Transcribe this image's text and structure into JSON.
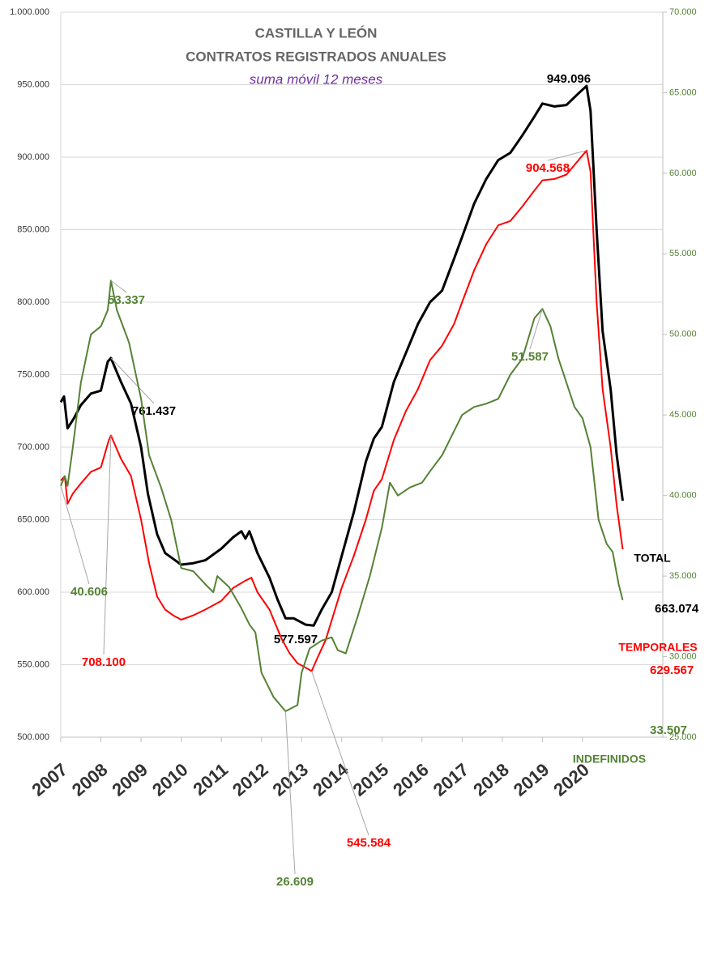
{
  "chart_data": {
    "type": "line",
    "title": "CASTILLA Y LEÓN",
    "subtitle_1": "CONTRATOS REGISTRADOS ANUALES",
    "subtitle_2": "suma móvil 12 meses",
    "xlim": [
      2007,
      2022
    ],
    "xticks": [
      2007,
      2008,
      2009,
      2010,
      2011,
      2012,
      2013,
      2014,
      2015,
      2016,
      2017,
      2018,
      2019,
      2020
    ],
    "ylim": [
      500000,
      1000000
    ],
    "yticks": [
      {
        "value": 500000,
        "label": "500.000"
      },
      {
        "value": 550000,
        "label": "550.000"
      },
      {
        "value": 600000,
        "label": "600.000"
      },
      {
        "value": 650000,
        "label": "650.000"
      },
      {
        "value": 700000,
        "label": "700.000"
      },
      {
        "value": 750000,
        "label": "750.000"
      },
      {
        "value": 800000,
        "label": "800.000"
      },
      {
        "value": 850000,
        "label": "850.000"
      },
      {
        "value": 900000,
        "label": "900.000"
      },
      {
        "value": 950000,
        "label": "950.000"
      },
      {
        "value": 1000000,
        "label": "1.000.000"
      }
    ],
    "y2lim": [
      25000,
      70000
    ],
    "y2ticks": [
      {
        "value": 25000,
        "label": "25.000"
      },
      {
        "value": 30000,
        "label": "30.000"
      },
      {
        "value": 35000,
        "label": "35.000"
      },
      {
        "value": 40000,
        "label": "40.000"
      },
      {
        "value": 45000,
        "label": "45.000"
      },
      {
        "value": 50000,
        "label": "50.000"
      },
      {
        "value": 55000,
        "label": "55.000"
      },
      {
        "value": 60000,
        "label": "60.000"
      },
      {
        "value": 65000,
        "label": "65.000"
      },
      {
        "value": 70000,
        "label": "70.000"
      }
    ],
    "grid": true,
    "series": [
      {
        "name": "TOTAL",
        "color": "#000000",
        "axis": "y",
        "x": [
          2007.0,
          2007.08,
          2007.17,
          2007.33,
          2007.5,
          2007.75,
          2008.0,
          2008.17,
          2008.25,
          2008.5,
          2008.75,
          2009.0,
          2009.17,
          2009.4,
          2009.6,
          2009.8,
          2010.0,
          2010.3,
          2010.6,
          2011.0,
          2011.3,
          2011.5,
          2011.6,
          2011.7,
          2011.9,
          2012.2,
          2012.4,
          2012.6,
          2012.8,
          2013.1,
          2013.3,
          2013.5,
          2013.75,
          2014.0,
          2014.3,
          2014.6,
          2014.8,
          2015.0,
          2015.3,
          2015.6,
          2015.9,
          2016.2,
          2016.5,
          2016.8,
          2017.0,
          2017.3,
          2017.6,
          2017.9,
          2018.2,
          2018.5,
          2018.8,
          2019.0,
          2019.3,
          2019.6,
          2019.9,
          2020.1,
          2020.2,
          2020.35,
          2020.5,
          2020.7,
          2020.85,
          2021.0
        ],
        "values": [
          731000,
          735000,
          713000,
          720000,
          729000,
          737000,
          739000,
          759000,
          761437,
          745000,
          730000,
          700000,
          668000,
          640000,
          627000,
          623000,
          619000,
          620000,
          622000,
          630000,
          638000,
          642000,
          637000,
          642000,
          627000,
          610000,
          595000,
          582000,
          582000,
          577597,
          577000,
          588000,
          600000,
          625000,
          655000,
          690000,
          706000,
          714000,
          745000,
          765000,
          785000,
          800000,
          808000,
          830000,
          845000,
          868000,
          885000,
          898000,
          903000,
          915000,
          928000,
          937000,
          935000,
          936000,
          944000,
          949096,
          932000,
          850000,
          780000,
          740000,
          695000,
          663074
        ],
        "value_labels": [
          null,
          null,
          null,
          null,
          null,
          null,
          null,
          null,
          "761.437",
          null,
          null,
          null,
          null,
          null,
          null,
          null,
          null,
          null,
          null,
          null,
          null,
          null,
          null,
          null,
          null,
          null,
          null,
          null,
          null,
          "577.597",
          null,
          null,
          null,
          null,
          null,
          null,
          null,
          null,
          null,
          null,
          null,
          null,
          null,
          null,
          null,
          null,
          null,
          null,
          null,
          null,
          null,
          null,
          null,
          null,
          null,
          "949.096",
          null,
          null,
          null,
          null,
          null,
          "663.074"
        ]
      },
      {
        "name": "TEMPORALES",
        "color": "#ff0000",
        "axis": "y",
        "x": [
          2007.0,
          2007.1,
          2007.17,
          2007.3,
          2007.5,
          2007.75,
          2008.0,
          2008.2,
          2008.25,
          2008.5,
          2008.75,
          2009.0,
          2009.2,
          2009.4,
          2009.6,
          2009.8,
          2010.0,
          2010.3,
          2010.6,
          2011.0,
          2011.3,
          2011.6,
          2011.75,
          2011.9,
          2012.2,
          2012.5,
          2012.7,
          2012.9,
          2013.1,
          2013.25,
          2013.4,
          2013.6,
          2013.8,
          2014.0,
          2014.3,
          2014.6,
          2014.8,
          2015.0,
          2015.3,
          2015.6,
          2015.9,
          2016.2,
          2016.5,
          2016.8,
          2017.0,
          2017.3,
          2017.6,
          2017.9,
          2018.2,
          2018.5,
          2018.8,
          2019.0,
          2019.3,
          2019.6,
          2019.9,
          2020.1,
          2020.2,
          2020.35,
          2020.5,
          2020.7,
          2020.85,
          2021.0
        ],
        "values": [
          677000,
          680000,
          661000,
          668000,
          675000,
          683000,
          686000,
          705000,
          708100,
          692000,
          680000,
          650000,
          620000,
          597000,
          588000,
          584000,
          581000,
          584000,
          588000,
          594000,
          603000,
          608000,
          610000,
          600000,
          588000,
          568000,
          558000,
          551000,
          548000,
          545584,
          555000,
          567000,
          585000,
          603000,
          625000,
          650000,
          670000,
          678000,
          705000,
          725000,
          740000,
          760000,
          770000,
          785000,
          800000,
          822000,
          840000,
          853000,
          856000,
          866000,
          877000,
          884000,
          885000,
          888000,
          898000,
          904568,
          890000,
          800000,
          740000,
          700000,
          660000,
          629567
        ],
        "value_labels": [
          null,
          null,
          null,
          null,
          null,
          null,
          null,
          null,
          "708.100",
          null,
          null,
          null,
          null,
          null,
          null,
          null,
          null,
          null,
          null,
          null,
          null,
          null,
          null,
          null,
          null,
          null,
          null,
          null,
          null,
          "545.584",
          null,
          null,
          null,
          null,
          null,
          null,
          null,
          null,
          null,
          null,
          null,
          null,
          null,
          null,
          null,
          null,
          null,
          null,
          null,
          null,
          null,
          null,
          null,
          null,
          null,
          "904.568",
          null,
          null,
          null,
          null,
          null,
          "629.567"
        ]
      },
      {
        "name": "INDEFINIDOS",
        "color": "#548235",
        "axis": "y2",
        "x": [
          2007.0,
          2007.1,
          2007.17,
          2007.3,
          2007.5,
          2007.75,
          2008.0,
          2008.17,
          2008.25,
          2008.4,
          2008.7,
          2009.0,
          2009.2,
          2009.5,
          2009.75,
          2010.0,
          2010.3,
          2010.6,
          2010.8,
          2010.9,
          2011.2,
          2011.5,
          2011.7,
          2011.85,
          2012.0,
          2012.3,
          2012.6,
          2012.9,
          2013.0,
          2013.2,
          2013.5,
          2013.75,
          2013.9,
          2014.1,
          2014.4,
          2014.7,
          2015.0,
          2015.2,
          2015.4,
          2015.7,
          2016.0,
          2016.2,
          2016.5,
          2016.8,
          2017.0,
          2017.3,
          2017.6,
          2017.9,
          2018.2,
          2018.5,
          2018.8,
          2019.0,
          2019.2,
          2019.4,
          2019.6,
          2019.8,
          2020.0,
          2020.2,
          2020.4,
          2020.6,
          2020.75,
          2020.9,
          2021.0
        ],
        "values": [
          40606,
          41200,
          40600,
          43000,
          47000,
          50000,
          50500,
          51500,
          53337,
          51500,
          49500,
          46000,
          42500,
          40500,
          38500,
          35500,
          35300,
          34500,
          34000,
          35000,
          34300,
          33000,
          32000,
          31500,
          29000,
          27500,
          26609,
          27000,
          29000,
          30500,
          31000,
          31200,
          30400,
          30200,
          32500,
          35000,
          38000,
          40800,
          40000,
          40500,
          40800,
          41500,
          42500,
          44000,
          45000,
          45500,
          45700,
          46000,
          47500,
          48500,
          51000,
          51587,
          50500,
          48500,
          47000,
          45500,
          44800,
          43000,
          38500,
          37000,
          36500,
          34500,
          33507
        ],
        "value_labels": [
          "40.606",
          null,
          null,
          null,
          null,
          null,
          null,
          null,
          "53.337",
          null,
          null,
          null,
          null,
          null,
          null,
          null,
          null,
          null,
          null,
          null,
          null,
          null,
          null,
          null,
          null,
          null,
          "26.609",
          null,
          null,
          null,
          null,
          null,
          null,
          null,
          null,
          null,
          null,
          null,
          null,
          null,
          null,
          null,
          null,
          null,
          null,
          null,
          null,
          null,
          null,
          null,
          null,
          "51.587",
          null,
          null,
          null,
          null,
          null,
          null,
          null,
          null,
          null,
          null,
          "33.507"
        ]
      }
    ]
  }
}
